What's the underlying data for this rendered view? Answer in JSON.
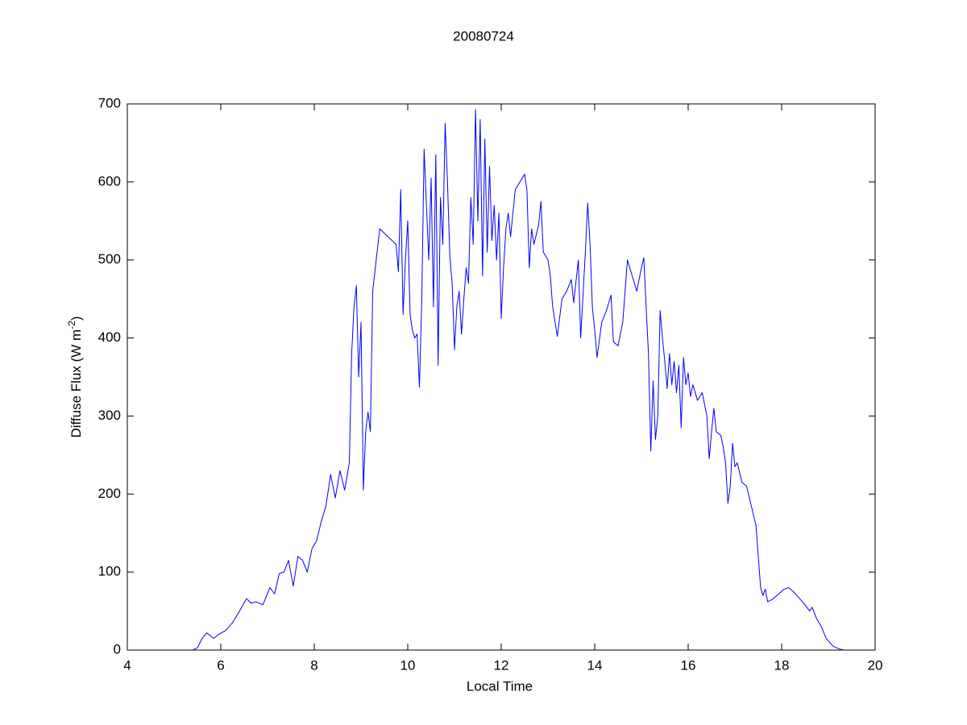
{
  "chart_data": {
    "type": "line",
    "title": "20080724",
    "xlabel": "Local Time",
    "ylabel": {
      "text": "Diffuse Flux (W m",
      "superscript": "-2",
      "suffix": ")"
    },
    "xlim": [
      4,
      20
    ],
    "ylim": [
      0,
      700
    ],
    "xticks": [
      4,
      6,
      8,
      10,
      12,
      14,
      16,
      18,
      20
    ],
    "yticks": [
      0,
      100,
      200,
      300,
      400,
      500,
      600,
      700
    ],
    "grid": false,
    "color": "#0000ff",
    "x": [
      5.4,
      5.5,
      5.6,
      5.7,
      5.85,
      5.95,
      6.1,
      6.25,
      6.4,
      6.55,
      6.65,
      6.75,
      6.9,
      7.05,
      7.15,
      7.25,
      7.35,
      7.45,
      7.55,
      7.65,
      7.75,
      7.85,
      7.95,
      8.05,
      8.15,
      8.25,
      8.35,
      8.45,
      8.55,
      8.65,
      8.75,
      8.8,
      8.85,
      8.9,
      8.95,
      9.0,
      9.05,
      9.1,
      9.15,
      9.2,
      9.25,
      9.4,
      9.75,
      9.8,
      9.85,
      9.9,
      9.95,
      10.0,
      10.05,
      10.1,
      10.15,
      10.2,
      10.25,
      10.3,
      10.35,
      10.4,
      10.45,
      10.5,
      10.55,
      10.6,
      10.65,
      10.7,
      10.75,
      10.8,
      10.85,
      10.9,
      10.95,
      11.0,
      11.05,
      11.1,
      11.15,
      11.2,
      11.25,
      11.3,
      11.35,
      11.4,
      11.45,
      11.5,
      11.55,
      11.6,
      11.65,
      11.7,
      11.75,
      11.8,
      11.85,
      11.9,
      11.95,
      12.0,
      12.05,
      12.1,
      12.15,
      12.2,
      12.3,
      12.4,
      12.5,
      12.55,
      12.6,
      12.65,
      12.7,
      12.8,
      12.85,
      12.9,
      13.0,
      13.05,
      13.1,
      13.2,
      13.3,
      13.4,
      13.5,
      13.55,
      13.65,
      13.7,
      13.8,
      13.85,
      13.9,
      13.95,
      14.0,
      14.05,
      14.15,
      14.25,
      14.35,
      14.4,
      14.5,
      14.6,
      14.7,
      14.8,
      14.9,
      15.0,
      15.05,
      15.1,
      15.15,
      15.2,
      15.25,
      15.3,
      15.35,
      15.4,
      15.45,
      15.5,
      15.55,
      15.6,
      15.65,
      15.7,
      15.75,
      15.8,
      15.85,
      15.9,
      15.95,
      16.0,
      16.05,
      16.1,
      16.2,
      16.3,
      16.4,
      16.45,
      16.5,
      16.55,
      16.6,
      16.7,
      16.75,
      16.8,
      16.85,
      16.9,
      16.95,
      17.0,
      17.05,
      17.15,
      17.25,
      17.35,
      17.45,
      17.5,
      17.55,
      17.6,
      17.65,
      17.7,
      17.8,
      17.9,
      18.05,
      18.15,
      18.25,
      18.4,
      18.5,
      18.6,
      18.65,
      18.75,
      18.85,
      18.95,
      19.1,
      19.25,
      19.35
    ],
    "values": [
      0,
      3,
      15,
      22,
      15,
      20,
      25,
      35,
      50,
      66,
      60,
      62,
      58,
      80,
      72,
      98,
      100,
      115,
      82,
      120,
      115,
      100,
      130,
      140,
      165,
      185,
      225,
      195,
      230,
      205,
      240,
      380,
      440,
      467,
      350,
      420,
      205,
      280,
      305,
      280,
      460,
      540,
      520,
      485,
      590,
      430,
      500,
      550,
      430,
      410,
      400,
      405,
      337,
      450,
      642,
      570,
      500,
      605,
      440,
      635,
      365,
      580,
      520,
      675,
      600,
      505,
      470,
      385,
      440,
      460,
      405,
      450,
      490,
      470,
      580,
      520,
      693,
      550,
      680,
      480,
      655,
      510,
      620,
      525,
      570,
      500,
      560,
      425,
      490,
      540,
      560,
      530,
      590,
      600,
      610,
      590,
      490,
      540,
      520,
      545,
      575,
      510,
      500,
      480,
      440,
      402,
      450,
      460,
      475,
      445,
      500,
      400,
      510,
      573,
      520,
      440,
      410,
      375,
      420,
      435,
      455,
      395,
      390,
      420,
      500,
      480,
      460,
      490,
      503,
      440,
      380,
      255,
      345,
      270,
      300,
      435,
      400,
      370,
      335,
      380,
      340,
      370,
      330,
      365,
      285,
      375,
      340,
      355,
      325,
      340,
      320,
      330,
      300,
      245,
      280,
      310,
      280,
      275,
      260,
      240,
      188,
      210,
      265,
      235,
      240,
      215,
      210,
      185,
      160,
      120,
      80,
      70,
      78,
      62,
      65,
      70,
      78,
      80,
      75,
      65,
      58,
      50,
      55,
      40,
      30,
      15,
      5,
      1,
      0
    ]
  }
}
